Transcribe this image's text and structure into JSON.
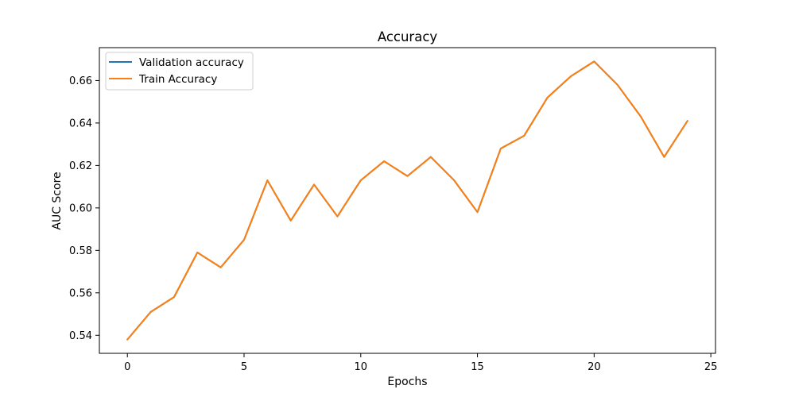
{
  "chart_data": {
    "type": "line",
    "title": "Accuracy",
    "xlabel": "Epochs",
    "ylabel": "AUC Score",
    "xlim": [
      -1.2,
      25.2
    ],
    "ylim": [
      0.5315,
      0.6755
    ],
    "xticks": [
      0,
      5,
      10,
      15,
      20,
      25
    ],
    "yticks": [
      0.54,
      0.56,
      0.58,
      0.6,
      0.62,
      0.64,
      0.66
    ],
    "ytick_labels": [
      "0.54",
      "0.56",
      "0.58",
      "0.60",
      "0.62",
      "0.64",
      "0.66"
    ],
    "grid": false,
    "legend_position": "top-left",
    "x": [
      0,
      1,
      2,
      3,
      4,
      5,
      6,
      7,
      8,
      9,
      10,
      11,
      12,
      13,
      14,
      15,
      16,
      17,
      18,
      19,
      20,
      21,
      22,
      23,
      24
    ],
    "series": [
      {
        "name": "Validation accuracy",
        "color": "#1f77b4",
        "values": [
          0.538,
          0.551,
          0.558,
          0.579,
          0.572,
          0.585,
          0.613,
          0.594,
          0.611,
          0.596,
          0.613,
          0.622,
          0.615,
          0.624,
          0.613,
          0.598,
          0.628,
          0.634,
          0.652,
          0.662,
          0.669,
          0.658,
          0.643,
          0.624,
          0.641
        ]
      },
      {
        "name": "Train Accuracy",
        "color": "#ff7f0e",
        "values": [
          0.538,
          0.551,
          0.558,
          0.579,
          0.572,
          0.585,
          0.613,
          0.594,
          0.611,
          0.596,
          0.613,
          0.622,
          0.615,
          0.624,
          0.613,
          0.598,
          0.628,
          0.634,
          0.652,
          0.662,
          0.669,
          0.658,
          0.643,
          0.624,
          0.641
        ]
      }
    ]
  }
}
